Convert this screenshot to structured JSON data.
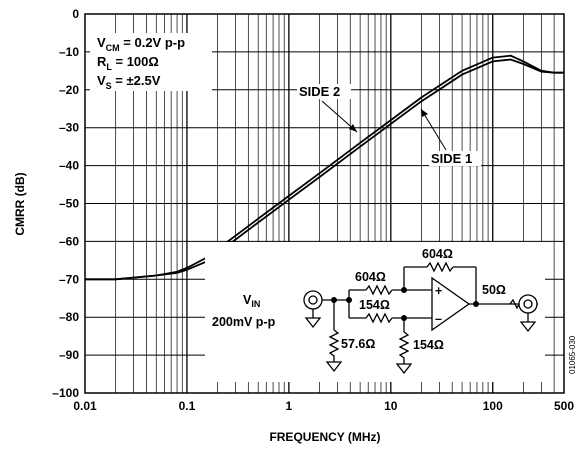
{
  "chart_data": {
    "type": "line",
    "xlabel": "FREQUENCY (MHz)",
    "ylabel": "CMRR (dB)",
    "x_scale": "log",
    "xlim": [
      0.01,
      500
    ],
    "ylim": [
      -100,
      0
    ],
    "grid": true,
    "x_ticks": [
      {
        "v": 0.01,
        "label": "0.01"
      },
      {
        "v": 0.1,
        "label": "0.1"
      },
      {
        "v": 1,
        "label": "1"
      },
      {
        "v": 10,
        "label": "10"
      },
      {
        "v": 100,
        "label": "100"
      },
      {
        "v": 500,
        "label": "500"
      }
    ],
    "y_ticks": [
      {
        "v": 0,
        "label": "0"
      },
      {
        "v": -10,
        "label": "–10"
      },
      {
        "v": -20,
        "label": "–20"
      },
      {
        "v": -30,
        "label": "–30"
      },
      {
        "v": -40,
        "label": "–40"
      },
      {
        "v": -50,
        "label": "–50"
      },
      {
        "v": -60,
        "label": "–60"
      },
      {
        "v": -70,
        "label": "–70"
      },
      {
        "v": -80,
        "label": "–80"
      },
      {
        "v": -90,
        "label": "–90"
      },
      {
        "v": -100,
        "label": "–100"
      }
    ],
    "series": [
      {
        "name": "SIDE 2",
        "x": [
          0.01,
          0.02,
          0.05,
          0.08,
          0.1,
          0.15,
          0.2,
          0.3,
          0.5,
          1,
          2,
          5,
          10,
          20,
          50,
          100,
          150,
          200,
          300,
          400,
          500
        ],
        "y": [
          -70,
          -70,
          -69,
          -68,
          -67,
          -64.5,
          -62,
          -58.5,
          -54,
          -48,
          -42,
          -34,
          -28,
          -22,
          -15,
          -11.5,
          -11,
          -12.5,
          -15,
          -15.5,
          -15.5
        ]
      },
      {
        "name": "SIDE 1",
        "x": [
          0.01,
          0.02,
          0.05,
          0.08,
          0.1,
          0.15,
          0.2,
          0.3,
          0.5,
          1,
          2,
          5,
          10,
          20,
          50,
          100,
          150,
          200,
          300,
          400,
          500
        ],
        "y": [
          -70,
          -70,
          -69,
          -68.3,
          -67.5,
          -65.5,
          -63,
          -59.5,
          -55,
          -49,
          -43,
          -35,
          -29,
          -23,
          -16,
          -12.5,
          -12,
          -13.2,
          -15.2,
          -15.5,
          -15.5
        ]
      }
    ]
  },
  "annotations": {
    "conditions": [
      {
        "main": "V",
        "sub": "CM",
        "rest": " = 0.2V p-p"
      },
      {
        "main": "R",
        "sub": "L",
        "rest": " = 100Ω"
      },
      {
        "main": "V",
        "sub": "S",
        "rest": " = ±2.5V"
      }
    ],
    "side2_label": "SIDE 2",
    "side1_label": "SIDE 1"
  },
  "schematic": {
    "vin_main": "V",
    "vin_sub": "IN",
    "vin_amplitude": "200mV p-p",
    "r_feedback": "604Ω",
    "r_plus_in": "604Ω",
    "r_minus_in": "154Ω",
    "r_minus_ground": "154Ω",
    "r_shunt": "57.6Ω",
    "r_out": "50Ω",
    "plus_sign": "+",
    "minus_sign": "–"
  },
  "figure_id": "01065-030"
}
